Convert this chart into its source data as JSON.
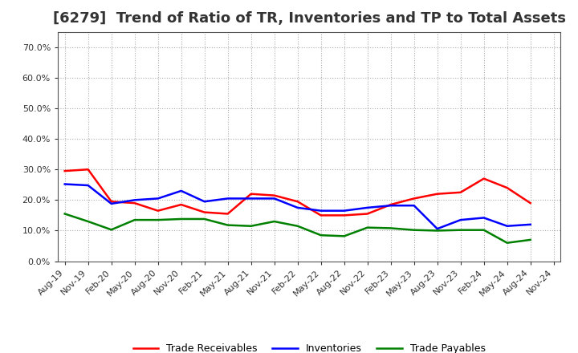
{
  "title": "[6279]  Trend of Ratio of TR, Inventories and TP to Total Assets",
  "x_labels": [
    "Aug-19",
    "Nov-19",
    "Feb-20",
    "May-20",
    "Aug-20",
    "Nov-20",
    "Feb-21",
    "May-21",
    "Aug-21",
    "Nov-21",
    "Feb-22",
    "May-22",
    "Aug-22",
    "Nov-22",
    "Feb-23",
    "May-23",
    "Aug-23",
    "Nov-23",
    "Feb-24",
    "May-24",
    "Aug-24",
    "Nov-24"
  ],
  "trade_receivables": [
    0.295,
    0.3,
    0.195,
    0.19,
    0.165,
    0.185,
    0.16,
    0.155,
    0.22,
    0.215,
    0.195,
    0.15,
    0.15,
    0.155,
    0.185,
    0.205,
    0.22,
    0.225,
    0.27,
    0.24,
    0.19,
    null
  ],
  "inventories": [
    0.252,
    0.248,
    0.188,
    0.2,
    0.205,
    0.23,
    0.195,
    0.205,
    0.205,
    0.205,
    0.175,
    0.165,
    0.165,
    0.175,
    0.182,
    0.182,
    0.106,
    0.135,
    0.142,
    0.115,
    0.12,
    null
  ],
  "trade_payables": [
    0.155,
    0.13,
    0.103,
    0.135,
    0.135,
    0.138,
    0.138,
    0.118,
    0.115,
    0.13,
    0.115,
    0.085,
    0.082,
    0.11,
    0.108,
    0.102,
    0.1,
    0.102,
    0.102,
    0.06,
    0.07,
    null
  ],
  "tr_color": "#ff0000",
  "inv_color": "#0000ff",
  "tp_color": "#008000",
  "ylim": [
    0.0,
    0.75
  ],
  "yticks": [
    0.0,
    0.1,
    0.2,
    0.3,
    0.4,
    0.5,
    0.6,
    0.7
  ],
  "background_color": "#ffffff",
  "grid_color": "#aaaaaa",
  "title_fontsize": 13,
  "figsize": [
    7.2,
    4.4
  ],
  "dpi": 100
}
